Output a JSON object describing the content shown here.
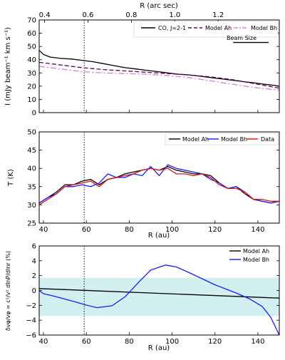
{
  "colors": {
    "co": "#000000",
    "model_ah": "#5a0a5a",
    "model_bh": "#e078e0",
    "p2_model_ah": "#000000",
    "p2_model_bh": "#1a1aff",
    "p2_data": "#e01010",
    "p3_model_ah": "#000000",
    "p3_model_bh": "#1a1aff",
    "band_fill": "#d2f0f0"
  },
  "chart_data": [
    {
      "type": "line",
      "panel": "intensity",
      "top_axis_label": "R (arc sec)",
      "top_ticks": [
        {
          "r_au": 40.5,
          "label": "0.4"
        },
        {
          "r_au": 60.75,
          "label": "0.6"
        },
        {
          "r_au": 81.0,
          "label": "0.8"
        },
        {
          "r_au": 101.25,
          "label": "1.0"
        },
        {
          "r_au": 121.5,
          "label": "1.2"
        }
      ],
      "ylabel": "I (mJy beam⁻¹ km s⁻¹)",
      "xlim": [
        38,
        150
      ],
      "ylim": [
        0,
        70
      ],
      "yticks": [
        "0",
        "10",
        "20",
        "30",
        "40",
        "50",
        "60",
        "70"
      ],
      "vline_x": 59,
      "beam_label": "Beam Size",
      "beam_range": [
        128.5,
        145
      ],
      "beam_y": 53,
      "legend": [
        "CO, J=2-1",
        "Model Ah",
        "Model Bh"
      ],
      "series": [
        {
          "name": "CO, J=2-1",
          "key": "co",
          "dash": "",
          "x": [
            38,
            40,
            43,
            48,
            53,
            58,
            63,
            68,
            73,
            78,
            83,
            88,
            93,
            98,
            103,
            108,
            113,
            118,
            123,
            128,
            133,
            138,
            143,
            148,
            150
          ],
          "y": [
            47,
            44,
            42,
            41,
            40.5,
            39.5,
            38.5,
            37,
            35.5,
            34,
            33,
            32,
            31,
            30,
            29,
            28.5,
            27.5,
            26.5,
            25.5,
            24.5,
            23.5,
            22.5,
            21.5,
            20.5,
            20
          ]
        },
        {
          "name": "Model Ah",
          "key": "model_ah",
          "dash": "6,3",
          "x": [
            38,
            48,
            58,
            68,
            78,
            88,
            98,
            108,
            118,
            128,
            138,
            150
          ],
          "y": [
            38,
            36,
            34,
            32.5,
            31.5,
            30.5,
            29.5,
            28.5,
            27,
            25,
            22,
            18.5
          ]
        },
        {
          "name": "Model Bh",
          "key": "model_bh",
          "dash": "8,3,2,3",
          "x": [
            38,
            48,
            58,
            68,
            78,
            88,
            98,
            108,
            118,
            128,
            138,
            150
          ],
          "y": [
            35,
            33,
            31,
            30,
            29.5,
            29,
            28,
            26.5,
            24,
            21.5,
            19,
            17
          ]
        }
      ]
    },
    {
      "type": "line",
      "panel": "temperature",
      "xlabel": "R (au)",
      "ylabel": "T (K)",
      "xlim": [
        38,
        150
      ],
      "ylim": [
        25,
        50
      ],
      "xticks": [
        "40",
        "60",
        "80",
        "100",
        "120",
        "140"
      ],
      "yticks": [
        "25",
        "30",
        "35",
        "40",
        "45",
        "50"
      ],
      "vline_x": 59,
      "legend": [
        "Model Ah",
        "Model Bh",
        "Data"
      ],
      "series": [
        {
          "name": "Model Ah",
          "key": "p2_model_ah",
          "x": [
            38,
            42,
            46,
            50,
            54,
            58,
            62,
            66,
            70,
            74,
            78,
            82,
            86,
            90,
            94,
            98,
            102,
            106,
            110,
            114,
            118,
            122,
            126,
            130,
            134,
            138,
            142,
            146,
            150
          ],
          "y": [
            30.5,
            32,
            33.5,
            35.5,
            35.5,
            36.5,
            37,
            35.5,
            37,
            37.5,
            38.5,
            39,
            39.5,
            40,
            39.5,
            40.5,
            39.5,
            39,
            38.5,
            38.5,
            38,
            36,
            34.5,
            35,
            33,
            31.5,
            31,
            30.5,
            31
          ]
        },
        {
          "name": "Model Bh",
          "key": "p2_model_bh",
          "x": [
            38,
            42,
            46,
            50,
            54,
            58,
            62,
            66,
            70,
            74,
            78,
            82,
            86,
            90,
            94,
            98,
            102,
            106,
            110,
            114,
            118,
            122,
            126,
            130,
            134,
            138,
            142,
            146,
            150
          ],
          "y": [
            30.5,
            32,
            33,
            35,
            35,
            35.5,
            35,
            36,
            38.5,
            37.5,
            37.5,
            38.5,
            38,
            40.5,
            38,
            41,
            40,
            39.5,
            39,
            38.5,
            37,
            36,
            34.5,
            35,
            33.5,
            31.5,
            31,
            30.5,
            31
          ]
        },
        {
          "name": "Data",
          "key": "p2_data",
          "x": [
            38,
            42,
            46,
            50,
            54,
            58,
            62,
            66,
            70,
            74,
            78,
            82,
            86,
            90,
            94,
            98,
            102,
            106,
            110,
            114,
            118,
            122,
            126,
            130,
            134,
            138,
            142,
            146,
            150
          ],
          "y": [
            30,
            31.5,
            33,
            35,
            35.5,
            36,
            36.5,
            35,
            37,
            37.5,
            38,
            38.5,
            39.5,
            40,
            39.5,
            40,
            38.5,
            38.5,
            38,
            38.5,
            37.5,
            35.5,
            34.5,
            34.5,
            33.5,
            31.5,
            31.5,
            31,
            31
          ]
        }
      ]
    },
    {
      "type": "line",
      "panel": "velocity",
      "xlabel": "R (au)",
      "ylabel": "δvφ/vφ = c²/v² dlnP/dlnr (%)",
      "xlim": [
        38,
        150
      ],
      "ylim": [
        -7,
        7
      ],
      "xticks": [
        "40",
        "60",
        "80",
        "100",
        "120",
        "140"
      ],
      "yticks": [
        "−6",
        "−4",
        "−2",
        "0",
        "2",
        "4",
        "6"
      ],
      "vline_x": 59,
      "band": [
        -4,
        2
      ],
      "legend": [
        "Model Ah",
        "Model Bh"
      ],
      "series": [
        {
          "name": "Model Ah",
          "key": "p3_model_ah",
          "x": [
            38,
            150
          ],
          "y": [
            0.3,
            -1.2
          ]
        },
        {
          "name": "Model Bh",
          "key": "p3_model_bh",
          "x": [
            38,
            40,
            45,
            55,
            60,
            65,
            72,
            78,
            85,
            90,
            97,
            102,
            108,
            120,
            130,
            136,
            142,
            146,
            150
          ],
          "y": [
            0,
            -0.5,
            -0.9,
            -1.8,
            -2.3,
            -2.7,
            -2.4,
            -1.0,
            1.5,
            3.2,
            4.0,
            3.7,
            2.8,
            0.9,
            -0.4,
            -1.3,
            -2.5,
            -4.2,
            -7
          ]
        }
      ]
    }
  ]
}
